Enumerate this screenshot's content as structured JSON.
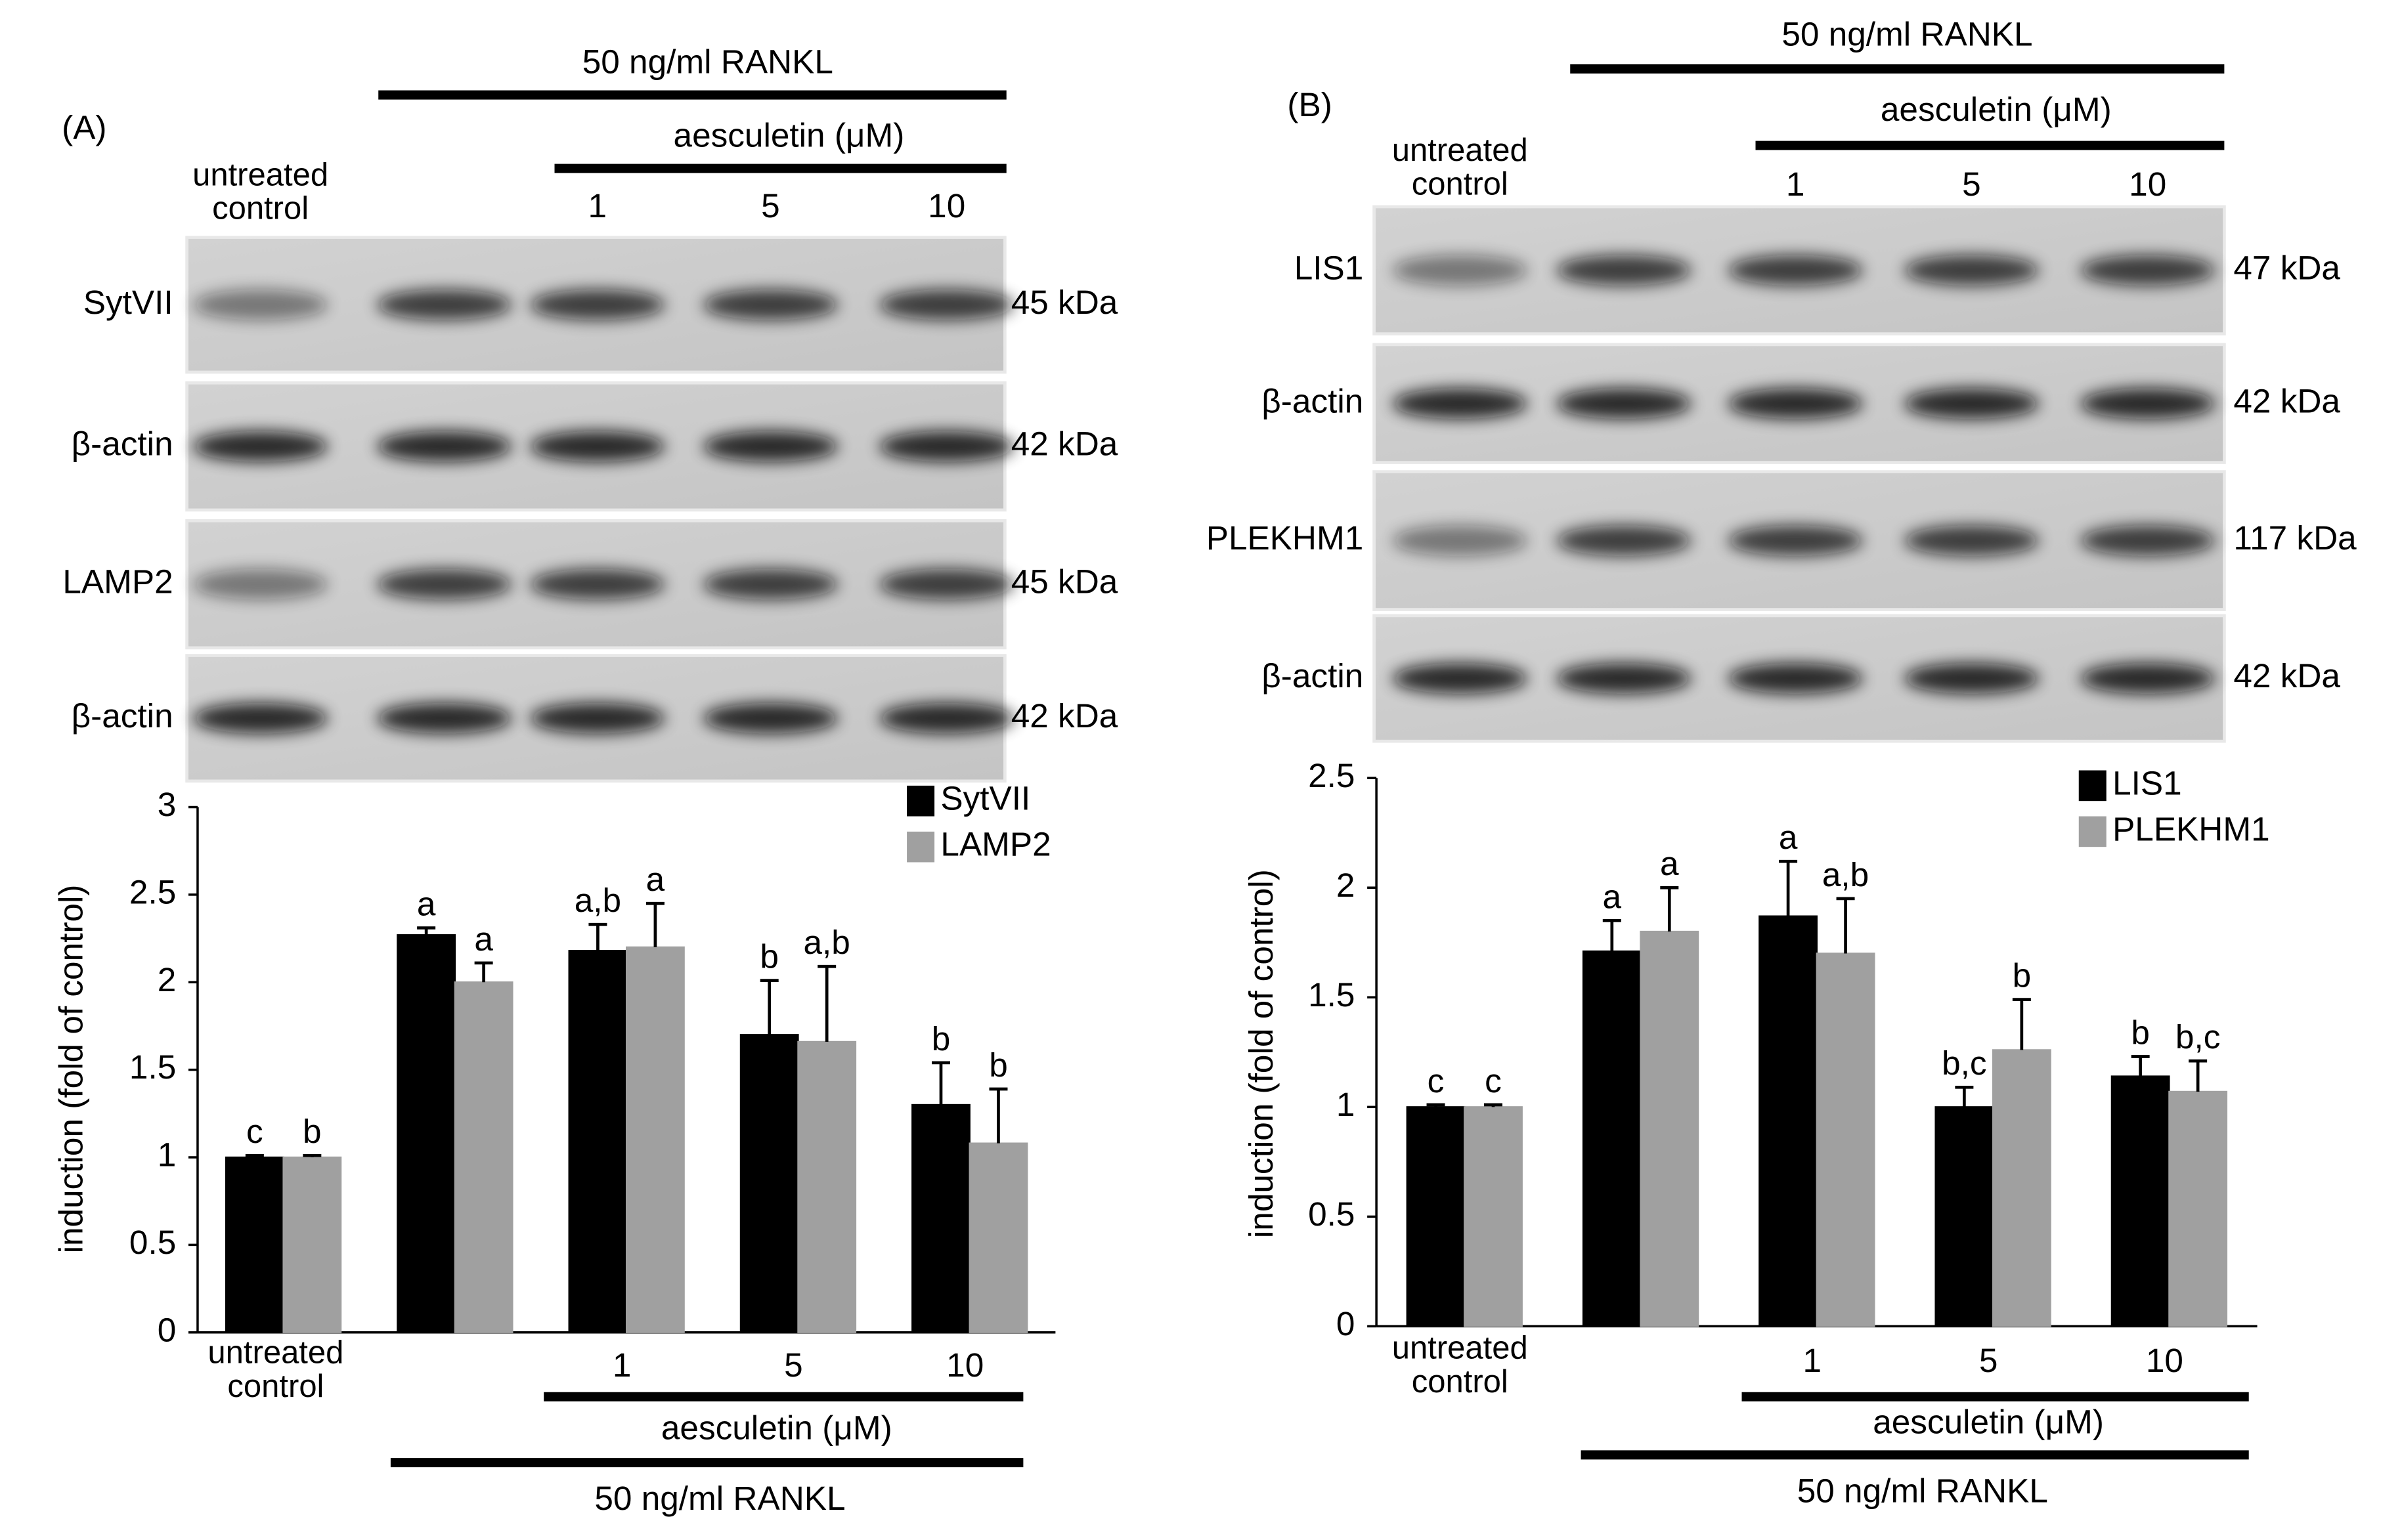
{
  "chart_data": [
    {
      "type": "bar",
      "panel_label": "(A)",
      "treatment_labels": [
        "aesculetin (μM)",
        "50 ng/ml RANKL"
      ],
      "blots": [
        {
          "label": "SytVII",
          "size": "45 kDa"
        },
        {
          "label": "β-actin",
          "size": "42 kDa"
        },
        {
          "label": "LAMP2",
          "size": "45 kDa"
        },
        {
          "label": "β-actin",
          "size": "42 kDa"
        }
      ],
      "ylabel": "induction (fold of control)",
      "categories": [
        "untreated control",
        null,
        "1",
        "5",
        "10"
      ],
      "series": [
        {
          "name": "SytVII",
          "color": "#000000",
          "values": [
            1.0,
            2.27,
            2.18,
            1.7,
            1.3
          ],
          "errors": [
            0.01,
            0.04,
            0.15,
            0.31,
            0.24
          ],
          "letters": [
            "c",
            "a",
            "a,b",
            "b",
            "b"
          ]
        },
        {
          "name": "LAMP2",
          "color": "#a0a0a0",
          "values": [
            1.0,
            2.0,
            2.2,
            1.66,
            1.08
          ],
          "errors": [
            0.01,
            0.11,
            0.25,
            0.43,
            0.31
          ],
          "letters": [
            "b",
            "a",
            "a",
            "a,b",
            "b"
          ]
        }
      ],
      "ylim": [
        0,
        3
      ],
      "yticks": [
        0,
        0.5,
        1,
        1.5,
        2,
        2.5,
        3
      ],
      "legend": "upper right"
    },
    {
      "type": "bar",
      "panel_label": "(B)",
      "treatment_labels": [
        "aesculetin (μM)",
        "50 ng/ml RANKL"
      ],
      "blots": [
        {
          "label": "LIS1",
          "size": "47 kDa"
        },
        {
          "label": "β-actin",
          "size": "42 kDa"
        },
        {
          "label": "PLEKHM1",
          "size": "117 kDa"
        },
        {
          "label": "β-actin",
          "size": "42 kDa"
        }
      ],
      "ylabel": "induction (fold of control)",
      "categories": [
        "untreated control",
        null,
        "1",
        "5",
        "10"
      ],
      "series": [
        {
          "name": "LIS1",
          "color": "#000000",
          "values": [
            1.0,
            1.71,
            1.87,
            1.0,
            1.14
          ],
          "errors": [
            0.01,
            0.14,
            0.25,
            0.09,
            0.09
          ],
          "letters": [
            "c",
            "a",
            "a",
            "b,c",
            "b"
          ]
        },
        {
          "name": "PLEKHM1",
          "color": "#a0a0a0",
          "values": [
            1.0,
            1.8,
            1.7,
            1.26,
            1.07
          ],
          "errors": [
            0.01,
            0.2,
            0.25,
            0.23,
            0.14
          ],
          "letters": [
            "c",
            "a",
            "a,b",
            "b",
            "b,c"
          ]
        }
      ],
      "ylim": [
        0,
        2.5
      ],
      "yticks": [
        0,
        0.5,
        1,
        1.5,
        2,
        2.5
      ],
      "legend": "upper right"
    }
  ]
}
